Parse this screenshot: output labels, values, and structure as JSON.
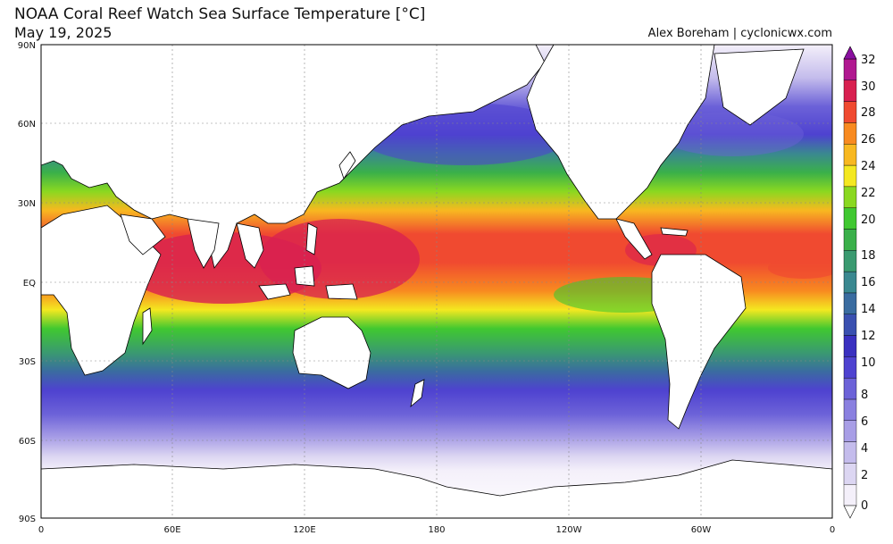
{
  "title": "NOAA Coral Reef Watch Sea Surface Temperature [°C]",
  "date": "May 19, 2025",
  "credit": "Alex Boreham | cyclonicwx.com",
  "map": {
    "lat_labels": [
      "90N",
      "60N",
      "30N",
      "EQ",
      "30S",
      "60S",
      "90S"
    ],
    "lon_labels": [
      "0",
      "60E",
      "120E",
      "180",
      "120W",
      "60W",
      "0"
    ],
    "land_color": "#ffffff",
    "coast_color": "#000000"
  },
  "colorbar": {
    "ticks": [
      "32",
      "30",
      "28",
      "26",
      "24",
      "22",
      "20",
      "18",
      "16",
      "14",
      "12",
      "10",
      "8",
      "6",
      "4",
      "2",
      "0"
    ],
    "colors": [
      "#f4f0fa",
      "#dcd6f2",
      "#c4bcec",
      "#a89ee6",
      "#8a80e0",
      "#6c62d8",
      "#4e42d0",
      "#3a30c0",
      "#3a50b0",
      "#3a6ca0",
      "#3a8890",
      "#3a9a70",
      "#3ab04a",
      "#40c830",
      "#8ad820",
      "#f4e820",
      "#f8b820",
      "#f88a20",
      "#f04a30",
      "#d82050",
      "#b01890"
    ],
    "top_arrow_color": "#8a10a0",
    "bottom_arrow_color": "#ffffff"
  }
}
